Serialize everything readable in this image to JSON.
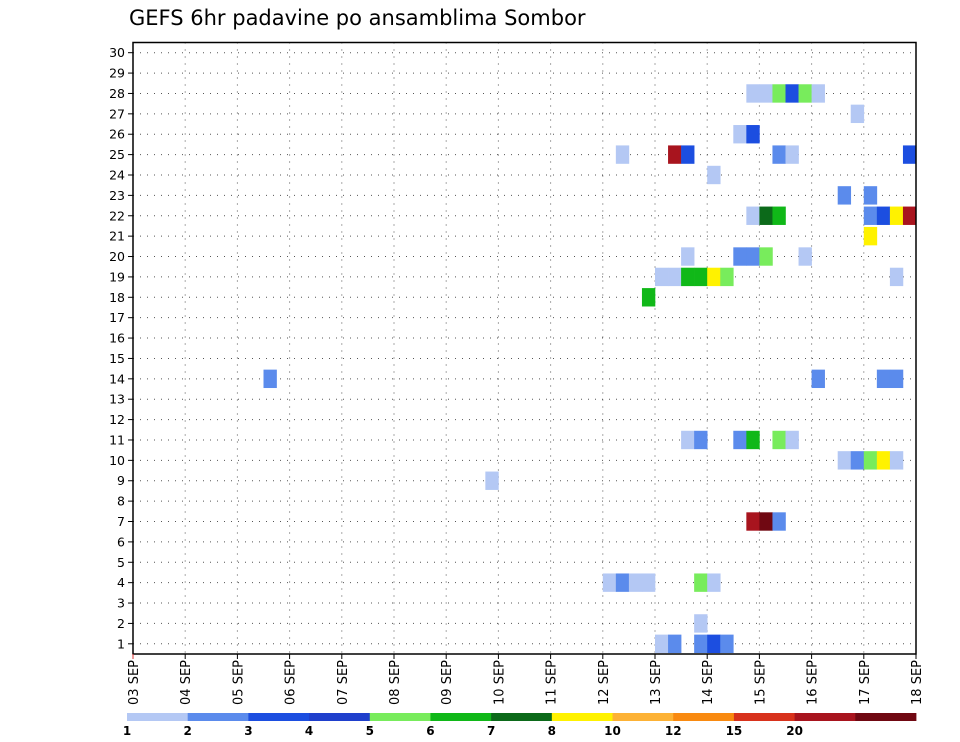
{
  "chart_data": {
    "type": "heatmap",
    "title": "GEFS 6hr padavine po ansamblima Sombor",
    "x_tick_labels": [
      "03 SEP",
      "04 SEP",
      "05 SEP",
      "06 SEP",
      "07 SEP",
      "08 SEP",
      "09 SEP",
      "10 SEP",
      "11 SEP",
      "12 SEP",
      "13 SEP",
      "14 SEP",
      "15 SEP",
      "16 SEP",
      "17 SEP",
      "18 SEP"
    ],
    "y_tick_labels": [
      "1",
      "2",
      "3",
      "4",
      "5",
      "6",
      "7",
      "8",
      "9",
      "10",
      "11",
      "12",
      "13",
      "14",
      "15",
      "16",
      "17",
      "18",
      "19",
      "20",
      "21",
      "22",
      "23",
      "24",
      "25",
      "26",
      "27",
      "28",
      "29",
      "30"
    ],
    "xlim": [
      0,
      60
    ],
    "ylim": [
      0.5,
      30.5
    ],
    "x_unit": "6-hour step from 03 SEP 00Z",
    "grid": true,
    "levels": [
      "1",
      "2",
      "3",
      "4",
      "5",
      "6",
      "7",
      "8",
      "10",
      "12",
      "15",
      "20"
    ],
    "level_colors": [
      "#b4c8f4",
      "#5b8bec",
      "#1c4ee0",
      "#1f3fcc",
      "#78ec5c",
      "#10b818",
      "#0c6a1a",
      "#fff200",
      "#fdb235",
      "#f98a10",
      "#d8321c",
      "#a8141e",
      "#700812"
    ],
    "cells": [
      {
        "x": 10.5,
        "y": 14,
        "level": 2
      },
      {
        "x": 27.5,
        "y": 9,
        "level": 1
      },
      {
        "x": 36.5,
        "y": 4,
        "level": 1
      },
      {
        "x": 37.5,
        "y": 4,
        "level": 2
      },
      {
        "x": 38.5,
        "y": 4,
        "level": 1
      },
      {
        "x": 39.5,
        "y": 4,
        "level": 1
      },
      {
        "x": 37.5,
        "y": 25,
        "level": 1
      },
      {
        "x": 39.5,
        "y": 18,
        "level": 6
      },
      {
        "x": 40.5,
        "y": 1,
        "level": 1
      },
      {
        "x": 41.5,
        "y": 1,
        "level": 2
      },
      {
        "x": 40.5,
        "y": 19,
        "level": 1
      },
      {
        "x": 41.5,
        "y": 19,
        "level": 1
      },
      {
        "x": 41.5,
        "y": 25,
        "level": 12
      },
      {
        "x": 42.5,
        "y": 25,
        "level": 3
      },
      {
        "x": 42.5,
        "y": 11,
        "level": 1
      },
      {
        "x": 43.5,
        "y": 11,
        "level": 2
      },
      {
        "x": 42.5,
        "y": 19,
        "level": 6
      },
      {
        "x": 43.5,
        "y": 19,
        "level": 6
      },
      {
        "x": 42.5,
        "y": 20,
        "level": 1
      },
      {
        "x": 43.5,
        "y": 1,
        "level": 2
      },
      {
        "x": 44.5,
        "y": 1,
        "level": 3
      },
      {
        "x": 45.5,
        "y": 1,
        "level": 2
      },
      {
        "x": 43.5,
        "y": 2,
        "level": 1
      },
      {
        "x": 43.5,
        "y": 4,
        "level": 5
      },
      {
        "x": 44.5,
        "y": 4,
        "level": 1
      },
      {
        "x": 44.5,
        "y": 19,
        "level": 8
      },
      {
        "x": 45.5,
        "y": 19,
        "level": 5
      },
      {
        "x": 44.5,
        "y": 24,
        "level": 1
      },
      {
        "x": 46.5,
        "y": 11,
        "level": 2
      },
      {
        "x": 47.5,
        "y": 11,
        "level": 6
      },
      {
        "x": 46.5,
        "y": 20,
        "level": 2
      },
      {
        "x": 47.5,
        "y": 20,
        "level": 2
      },
      {
        "x": 48.5,
        "y": 20,
        "level": 5
      },
      {
        "x": 46.5,
        "y": 26,
        "level": 1
      },
      {
        "x": 47.5,
        "y": 26,
        "level": 3
      },
      {
        "x": 47.5,
        "y": 7,
        "level": 12
      },
      {
        "x": 48.5,
        "y": 7,
        "level": 13
      },
      {
        "x": 49.5,
        "y": 7,
        "level": 2
      },
      {
        "x": 47.5,
        "y": 22,
        "level": 1
      },
      {
        "x": 48.5,
        "y": 22,
        "level": 7
      },
      {
        "x": 49.5,
        "y": 22,
        "level": 6
      },
      {
        "x": 47.5,
        "y": 28,
        "level": 1
      },
      {
        "x": 48.5,
        "y": 28,
        "level": 1
      },
      {
        "x": 49.5,
        "y": 28,
        "level": 5
      },
      {
        "x": 50.5,
        "y": 28,
        "level": 3
      },
      {
        "x": 51.5,
        "y": 28,
        "level": 5
      },
      {
        "x": 52.5,
        "y": 28,
        "level": 1
      },
      {
        "x": 49.5,
        "y": 11,
        "level": 5
      },
      {
        "x": 50.5,
        "y": 11,
        "level": 1
      },
      {
        "x": 49.5,
        "y": 25,
        "level": 2
      },
      {
        "x": 50.5,
        "y": 25,
        "level": 1
      },
      {
        "x": 51.5,
        "y": 20,
        "level": 1
      },
      {
        "x": 52.5,
        "y": 14,
        "level": 2
      },
      {
        "x": 54.5,
        "y": 10,
        "level": 1
      },
      {
        "x": 55.5,
        "y": 10,
        "level": 2
      },
      {
        "x": 56.5,
        "y": 10,
        "level": 5
      },
      {
        "x": 57.5,
        "y": 10,
        "level": 8
      },
      {
        "x": 58.5,
        "y": 10,
        "level": 1
      },
      {
        "x": 54.5,
        "y": 23,
        "level": 2
      },
      {
        "x": 55.5,
        "y": 27,
        "level": 1
      },
      {
        "x": 56.5,
        "y": 21,
        "level": 8
      },
      {
        "x": 56.5,
        "y": 22,
        "level": 2
      },
      {
        "x": 57.5,
        "y": 22,
        "level": 3
      },
      {
        "x": 58.5,
        "y": 22,
        "level": 8
      },
      {
        "x": 59.5,
        "y": 22,
        "level": 12
      },
      {
        "x": 56.5,
        "y": 23,
        "level": 2
      },
      {
        "x": 57.5,
        "y": 14,
        "level": 2
      },
      {
        "x": 58.5,
        "y": 14,
        "level": 2
      },
      {
        "x": 58.5,
        "y": 19,
        "level": 1
      },
      {
        "x": 59.5,
        "y": 25,
        "level": 3
      }
    ]
  }
}
